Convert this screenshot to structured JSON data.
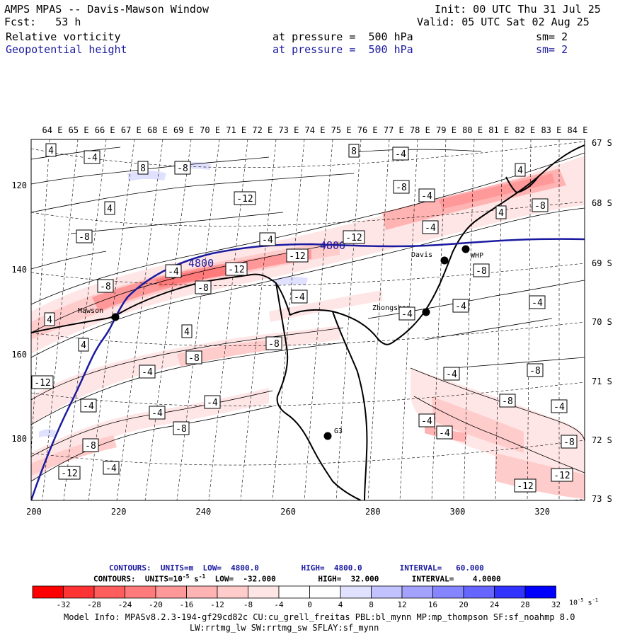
{
  "header": {
    "title": "AMPS MPAS -- Davis-Mawson Window",
    "fcst": "Fcst:   53 h",
    "init": "Init: 00 UTC Thu 31 Jul 25",
    "valid": "Valid: 05 UTC Sat 02 Aug 25",
    "field1": "Relative vorticity",
    "field1_level": "at pressure =  500 hPa",
    "field1_sm": "sm= 2",
    "field2": "Geopotential height",
    "field2_level": "at pressure =  500 hPa",
    "field2_sm": "sm= 2"
  },
  "axes": {
    "top_lon_labels": [
      "64 E",
      "65 E",
      "66 E",
      "67 E",
      "68 E",
      "69 E",
      "70 E",
      "71 E",
      "72 E",
      "73 E",
      "74 E",
      "75 E",
      "76 E",
      "77 E",
      "78 E",
      "79 E",
      "80 E",
      "81 E",
      "82 E",
      "83 E",
      "84 E"
    ],
    "right_lat_labels": [
      "67 S",
      "68 S",
      "69 S",
      "70 S",
      "71 S",
      "72 S",
      "73 S"
    ],
    "left_grid_labels": [
      "120",
      "140",
      "160",
      "180"
    ],
    "bottom_grid_labels": [
      "200",
      "220",
      "240",
      "260",
      "280",
      "300",
      "320"
    ]
  },
  "stations": [
    {
      "name": "Mawson"
    },
    {
      "name": "Davis"
    },
    {
      "name": "WHP"
    },
    {
      "name": "Zhongshan"
    },
    {
      "name": "G3"
    }
  ],
  "contour_labels": {
    "height_labels": [
      "4800",
      "4800"
    ],
    "vorticity_labels": [
      "4",
      "-4",
      "8",
      "-4",
      "8",
      "-8",
      "4",
      "-12",
      "-12",
      "-8",
      "-4",
      "-4",
      "-8",
      "-4",
      "-12",
      "-8",
      "-8",
      "-12",
      "4",
      "-8",
      "4",
      "-4",
      "-8",
      "4",
      "-4",
      "-4",
      "-8",
      "-4",
      "-8",
      "-4",
      "-12",
      "-12",
      "-4",
      "-4",
      "-8",
      "4",
      "4",
      "-8",
      "-4",
      "-4",
      "-4",
      "-4",
      "-8",
      "-8",
      "-4",
      "-4",
      "-4",
      "-8",
      "-12",
      "-12"
    ]
  },
  "footer": {
    "contours1": "CONTOURS:  UNITS=m  LOW=  4800.0         HIGH=  4800.0        INTERVAL=   60.000",
    "contours2_prefix": "CONTOURS:  UNITS=10",
    "contours2_sup": "-5",
    "contours2_unit": " s",
    "contours2_sup2": "-1",
    "contours2_suffix": "  LOW=  -32.000         HIGH=  32.000       INTERVAL=    4.0000",
    "colorbar_ticks": [
      "-32",
      "-28",
      "-24",
      "-20",
      "-16",
      "-12",
      "-8",
      "-4",
      "0",
      "4",
      "8",
      "12",
      "16",
      "20",
      "24",
      "28",
      "32"
    ],
    "colorbar_unit": "10",
    "colorbar_unit_sup": "-5",
    "colorbar_unit_s": " s",
    "colorbar_unit_sup2": "-1",
    "model_info1": "Model Info: MPASv8.2.3-194-gf29cd82c CU:cu_grell_freitas PBL:bl_mynn MP:mp_thompson SF:sf_noahmp 8.0",
    "model_info2": "LW:rrtmg_lw SW:rrtmg_sw SFLAY:sf_mynn"
  },
  "colors": {
    "colorbar": [
      "#ff0000",
      "#ff3333",
      "#ff5c5c",
      "#ff7a7a",
      "#ff9999",
      "#ffb3b3",
      "#ffcccc",
      "#ffe6e6",
      "#ffffff",
      "#ffffff",
      "#e0e0ff",
      "#c2c2ff",
      "#a3a3ff",
      "#8585ff",
      "#6666ff",
      "#3333ff",
      "#0000ff"
    ],
    "height_contour": "#1a1aa0",
    "header_blue": "#1a1aa0"
  }
}
